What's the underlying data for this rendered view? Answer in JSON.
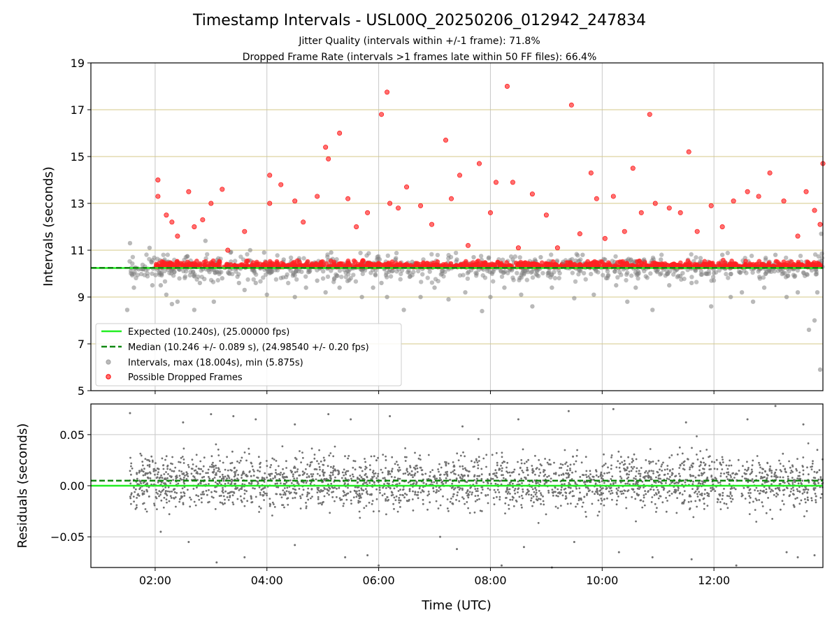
{
  "chart_data": [
    {
      "type": "scatter",
      "title": "Timestamp Intervals - USL00Q_20250206_012942_247834",
      "subtitle_1": "Jitter Quality (intervals within +/-1 frame): 71.8%",
      "subtitle_2": "Dropped Frame Rate (intervals >1 frames late within 50 FF files): 66.4%",
      "ylabel": "Intervals (seconds)",
      "ylim": [
        5,
        19
      ],
      "xlim_hours": [
        0.85,
        13.95
      ],
      "yticks": [
        "5",
        "7",
        "9",
        "11",
        "13",
        "15",
        "17",
        "19"
      ],
      "grid": "on",
      "legend_placement": "lower-left",
      "expected_interval": 10.24,
      "median_interval": 10.246,
      "intervals_max": 18.004,
      "intervals_min": 5.875,
      "legend": [
        {
          "label": "Expected (10.240s), (25.00000 fps)",
          "marker": "line",
          "color": "#22ee22"
        },
        {
          "label": "Median (10.246 +/- 0.089 s), (24.98540 +/- 0.20 fps)",
          "marker": "dashed",
          "color": "#118811"
        },
        {
          "label": "Intervals, max (18.004s), min (5.875s)",
          "marker": "dot",
          "color": "#808080"
        },
        {
          "label": "Possible Dropped Frames",
          "marker": "dot",
          "color": "#ff0000"
        }
      ],
      "series": [
        {
          "name": "Intervals, max (18.004s), min (5.875s)",
          "color": "#808080",
          "points": [
            [
              1.5,
              8.45
            ],
            [
              1.55,
              11.3
            ],
            [
              1.62,
              9.4
            ],
            [
              1.75,
              10.2
            ],
            [
              1.9,
              11.1
            ],
            [
              1.95,
              9.5
            ],
            [
              2.1,
              9.5
            ],
            [
              2.2,
              9.1
            ],
            [
              2.3,
              8.7
            ],
            [
              2.4,
              8.8
            ],
            [
              2.55,
              10.7
            ],
            [
              2.7,
              8.45
            ],
            [
              2.8,
              9.6
            ],
            [
              2.9,
              11.4
            ],
            [
              3.05,
              8.8
            ],
            [
              3.2,
              9.8
            ],
            [
              3.35,
              10.9
            ],
            [
              3.5,
              9.6
            ],
            [
              3.6,
              9.3
            ],
            [
              3.7,
              11.0
            ],
            [
              3.8,
              9.6
            ],
            [
              3.95,
              10.9
            ],
            [
              4.0,
              9.1
            ],
            [
              4.3,
              10.6
            ],
            [
              4.5,
              9.0
            ],
            [
              4.7,
              9.4
            ],
            [
              4.9,
              9.7
            ],
            [
              5.05,
              9.2
            ],
            [
              5.15,
              10.9
            ],
            [
              5.3,
              9.4
            ],
            [
              5.5,
              9.8
            ],
            [
              5.7,
              9.0
            ],
            [
              5.9,
              9.4
            ],
            [
              6.05,
              9.6
            ],
            [
              6.15,
              9.0
            ],
            [
              6.3,
              10.6
            ],
            [
              6.45,
              8.45
            ],
            [
              6.6,
              10.5
            ],
            [
              6.75,
              9.0
            ],
            [
              7.0,
              9.4
            ],
            [
              7.25,
              8.9
            ],
            [
              7.4,
              10.6
            ],
            [
              7.55,
              9.2
            ],
            [
              7.7,
              10.7
            ],
            [
              7.85,
              8.4
            ],
            [
              8.0,
              9.0
            ],
            [
              8.25,
              9.4
            ],
            [
              8.4,
              10.6
            ],
            [
              8.55,
              9.1
            ],
            [
              8.75,
              8.6
            ],
            [
              8.9,
              10.7
            ],
            [
              9.1,
              9.4
            ],
            [
              9.3,
              10.5
            ],
            [
              9.5,
              8.95
            ],
            [
              9.65,
              10.8
            ],
            [
              9.85,
              9.1
            ],
            [
              10.05,
              10.6
            ],
            [
              10.25,
              9.5
            ],
            [
              10.45,
              8.8
            ],
            [
              10.6,
              9.4
            ],
            [
              10.75,
              10.6
            ],
            [
              10.9,
              8.45
            ],
            [
              11.05,
              10.6
            ],
            [
              11.2,
              9.5
            ],
            [
              11.4,
              9.9
            ],
            [
              11.6,
              9.6
            ],
            [
              11.75,
              10.5
            ],
            [
              11.95,
              8.6
            ],
            [
              12.15,
              10.8
            ],
            [
              12.3,
              9.0
            ],
            [
              12.5,
              9.2
            ],
            [
              12.7,
              8.8
            ],
            [
              12.9,
              9.4
            ],
            [
              13.1,
              10.8
            ],
            [
              13.3,
              9.0
            ],
            [
              13.5,
              9.2
            ],
            [
              13.7,
              7.6
            ],
            [
              13.8,
              8.0
            ],
            [
              13.9,
              5.9
            ],
            [
              13.92,
              11.7
            ],
            [
              13.85,
              9.2
            ]
          ]
        },
        {
          "name": "Possible Dropped Frames",
          "color": "#ff0000",
          "points": [
            [
              2.05,
              14.0
            ],
            [
              2.05,
              13.3
            ],
            [
              2.2,
              12.5
            ],
            [
              2.3,
              12.2
            ],
            [
              2.4,
              11.6
            ],
            [
              2.6,
              13.5
            ],
            [
              2.7,
              12.0
            ],
            [
              2.85,
              12.3
            ],
            [
              3.0,
              13.0
            ],
            [
              3.2,
              13.6
            ],
            [
              3.3,
              11.0
            ],
            [
              3.6,
              11.8
            ],
            [
              4.05,
              14.2
            ],
            [
              4.05,
              13.0
            ],
            [
              4.25,
              13.8
            ],
            [
              4.5,
              13.1
            ],
            [
              4.65,
              12.2
            ],
            [
              4.9,
              13.3
            ],
            [
              5.05,
              15.4
            ],
            [
              5.1,
              14.9
            ],
            [
              5.3,
              16.0
            ],
            [
              5.45,
              13.2
            ],
            [
              5.6,
              12.0
            ],
            [
              5.8,
              12.6
            ],
            [
              6.05,
              16.8
            ],
            [
              6.15,
              17.75
            ],
            [
              6.2,
              13.0
            ],
            [
              6.35,
              12.8
            ],
            [
              6.5,
              13.7
            ],
            [
              6.75,
              12.9
            ],
            [
              6.95,
              12.1
            ],
            [
              7.2,
              15.7
            ],
            [
              7.3,
              13.2
            ],
            [
              7.45,
              14.2
            ],
            [
              7.6,
              11.2
            ],
            [
              7.8,
              14.7
            ],
            [
              8.0,
              12.6
            ],
            [
              8.1,
              13.9
            ],
            [
              8.3,
              18.0
            ],
            [
              8.4,
              13.9
            ],
            [
              8.5,
              11.1
            ],
            [
              8.75,
              13.4
            ],
            [
              9.0,
              12.5
            ],
            [
              9.2,
              11.1
            ],
            [
              9.45,
              17.2
            ],
            [
              9.6,
              11.7
            ],
            [
              9.8,
              14.3
            ],
            [
              9.9,
              13.2
            ],
            [
              10.05,
              11.5
            ],
            [
              10.2,
              13.3
            ],
            [
              10.4,
              11.8
            ],
            [
              10.55,
              14.5
            ],
            [
              10.7,
              12.6
            ],
            [
              10.85,
              16.8
            ],
            [
              10.95,
              13.0
            ],
            [
              11.2,
              12.8
            ],
            [
              11.4,
              12.6
            ],
            [
              11.55,
              15.2
            ],
            [
              11.7,
              11.8
            ],
            [
              11.95,
              12.9
            ],
            [
              12.15,
              12.0
            ],
            [
              12.35,
              13.1
            ],
            [
              12.6,
              13.5
            ],
            [
              12.8,
              13.3
            ],
            [
              13.0,
              14.3
            ],
            [
              13.25,
              13.1
            ],
            [
              13.5,
              11.6
            ],
            [
              13.65,
              13.5
            ],
            [
              13.8,
              12.7
            ],
            [
              13.95,
              14.7
            ],
            [
              13.9,
              12.1
            ]
          ]
        }
      ]
    },
    {
      "type": "scatter",
      "ylabel": "Residuals (seconds)",
      "xlabel": "Time (UTC)",
      "ylim": [
        -0.08,
        0.08
      ],
      "xlim_hours": [
        0.85,
        13.95
      ],
      "yticks": [
        {
          "value": 0.05,
          "label": "0.05"
        },
        {
          "value": 0.0,
          "label": "0.00"
        },
        {
          "value": -0.05,
          "label": "−0.05"
        }
      ],
      "xticks": [
        {
          "hour": 2,
          "label": "02:00"
        },
        {
          "hour": 4,
          "label": "04:00"
        },
        {
          "hour": 6,
          "label": "06:00"
        },
        {
          "hour": 8,
          "label": "08:00"
        },
        {
          "hour": 10,
          "label": "10:00"
        },
        {
          "hour": 12,
          "label": "12:00"
        }
      ],
      "expected_residual": 0.0,
      "median_residual": 0.005,
      "grid": "on",
      "series": [
        {
          "name": "",
          "color": "#707070",
          "points": [
            [
              1.55,
              0.071
            ],
            [
              2.5,
              0.062
            ],
            [
              3.0,
              0.07
            ],
            [
              3.4,
              0.068
            ],
            [
              3.8,
              0.065
            ],
            [
              4.5,
              0.06
            ],
            [
              5.1,
              0.07
            ],
            [
              5.5,
              0.065
            ],
            [
              6.2,
              0.068
            ],
            [
              7.5,
              0.058
            ],
            [
              8.5,
              0.065
            ],
            [
              9.4,
              0.073
            ],
            [
              10.2,
              0.075
            ],
            [
              11.5,
              0.062
            ],
            [
              12.6,
              0.065
            ],
            [
              13.1,
              0.078
            ],
            [
              13.6,
              0.06
            ],
            [
              2.1,
              -0.045
            ],
            [
              2.6,
              -0.055
            ],
            [
              3.1,
              -0.075
            ],
            [
              3.6,
              -0.07
            ],
            [
              4.5,
              -0.058
            ],
            [
              5.4,
              -0.07
            ],
            [
              5.8,
              -0.068
            ],
            [
              6.0,
              -0.078
            ],
            [
              7.1,
              -0.05
            ],
            [
              7.4,
              -0.062
            ],
            [
              8.2,
              -0.078
            ],
            [
              8.6,
              -0.06
            ],
            [
              9.1,
              -0.08
            ],
            [
              9.5,
              -0.055
            ],
            [
              10.3,
              -0.065
            ],
            [
              10.9,
              -0.07
            ],
            [
              11.6,
              -0.072
            ],
            [
              12.4,
              -0.078
            ],
            [
              13.3,
              -0.065
            ],
            [
              13.5,
              -0.07
            ],
            [
              13.8,
              -0.068
            ]
          ]
        }
      ]
    }
  ]
}
